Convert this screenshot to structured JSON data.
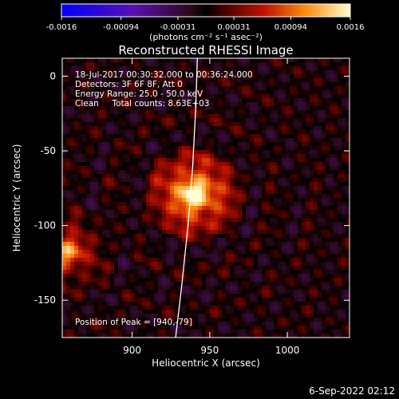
{
  "chart_data": {
    "type": "heatmap",
    "title": "Reconstructed RHESSI Image",
    "xlabel": "Heliocentric X (arcsec)",
    "ylabel": "Heliocentric Y (arcsec)",
    "xlim": [
      855,
      1040
    ],
    "ylim": [
      -175,
      12
    ],
    "x_ticks": [
      900,
      950,
      1000
    ],
    "y_ticks": [
      0,
      -50,
      -100,
      -150
    ],
    "colorbar": {
      "ticks": [
        -0.0016,
        -0.00094,
        -0.00031,
        0.00031,
        0.00094,
        0.0016
      ],
      "tick_labels": [
        "-0.0016",
        "-0.00094",
        "-0.00031",
        "0.00031",
        "0.00094",
        "0.0016"
      ],
      "unit_label": "(photons cm⁻² s⁻¹ asec⁻²)",
      "range": [
        -0.0016,
        0.0016
      ]
    },
    "annotations": [
      "18-Jul-2017 00:30:32.000 to 00:36:24.000",
      "Detectors: 3F 6F 8F, Att 0",
      "Energy Range: 25.0 - 50.0 keV",
      "Clean     Total counts: 8.63E+03"
    ],
    "peak_label": "Position of Peak = [940,-79]",
    "peak": {
      "x": 940,
      "y": -79
    },
    "sources": [
      {
        "x": 940,
        "y": -79,
        "peak": 0.0016
      },
      {
        "x": 858,
        "y": -118,
        "peak": 0.0011
      }
    ],
    "limb_x": [
      928,
      932,
      936,
      939,
      941,
      942
    ],
    "limb_y": [
      -175,
      -140,
      -100,
      -60,
      -20,
      12
    ]
  },
  "footer": {
    "timestamp": "6-Sep-2022 02:12"
  },
  "colors": {
    "background": "#000000",
    "foreground": "#ffffff",
    "limb": "#ffffff"
  }
}
